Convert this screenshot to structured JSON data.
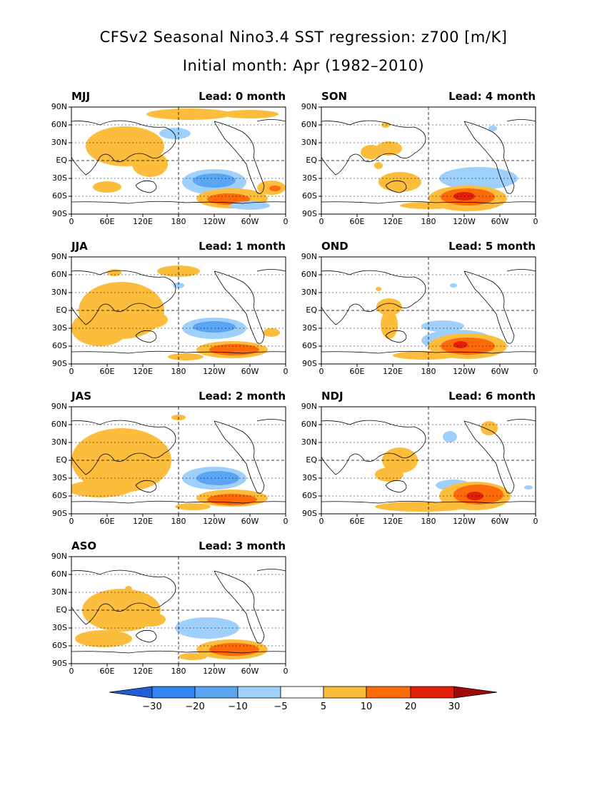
{
  "title_line1": "CFSv2 Seasonal Nino3.4 SST regression: z700 [m/K]",
  "title_line2": "Initial month: Apr (1982–2010)",
  "lon_ticks": [
    "0",
    "60E",
    "120E",
    "180",
    "120W",
    "60W",
    "0"
  ],
  "lat_ticks": [
    "90N",
    "60N",
    "30N",
    "EQ",
    "30S",
    "60S",
    "90S"
  ],
  "chart_data": {
    "type": "heatmap",
    "panels": [
      {
        "season": "MJJ",
        "lead": "Lead: 0 month"
      },
      {
        "season": "SON",
        "lead": "Lead: 4 month"
      },
      {
        "season": "JJA",
        "lead": "Lead: 1 month"
      },
      {
        "season": "OND",
        "lead": "Lead: 5 month"
      },
      {
        "season": "JAS",
        "lead": "Lead: 2 month"
      },
      {
        "season": "NDJ",
        "lead": "Lead: 6 month"
      },
      {
        "season": "ASO",
        "lead": "Lead: 3 month"
      }
    ],
    "colorbar": {
      "labels": [
        "-30",
        "-20",
        "-10",
        "-5",
        "5",
        "10",
        "20",
        "30"
      ],
      "colors": [
        "#1f5fd6",
        "#2f86f0",
        "#5aa6f5",
        "#9fd0fb",
        "#ffffff",
        "#fcbc3c",
        "#fc6a0a",
        "#e0200a",
        "#a00a0a"
      ]
    }
  }
}
